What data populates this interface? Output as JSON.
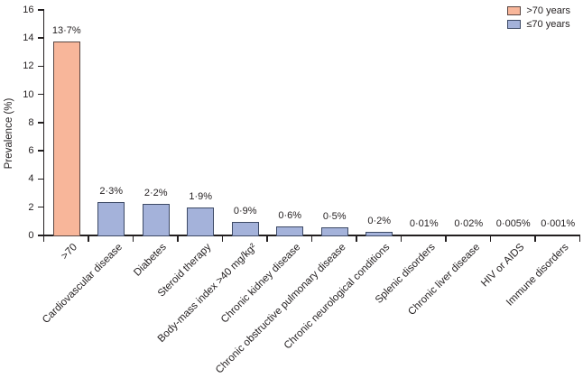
{
  "chart_data": {
    "type": "bar",
    "title": "",
    "xlabel": "",
    "ylabel": "Prevalence (%)",
    "ylim": [
      0,
      16
    ],
    "yticks": [
      0,
      2,
      4,
      6,
      8,
      10,
      12,
      14,
      16
    ],
    "grid": false,
    "legend_position": "top-right",
    "categories": [
      ">70",
      "Cardiovascular disease",
      "Diabetes",
      "Steroid therapy",
      "Body-mass index >40 mg/kg²",
      "Chronic kidney disease",
      "Chronic obstructive pulmonary disease",
      "Chronic neurological conditions",
      "Splenic disorders",
      "Chronic liver disease",
      "HIV or AIDS",
      "Immune disorders"
    ],
    "values": [
      13.7,
      2.3,
      2.2,
      1.9,
      0.9,
      0.6,
      0.5,
      0.2,
      0.01,
      0.02,
      0.005,
      0.001
    ],
    "value_labels": [
      "13·7%",
      "2·3%",
      "2·2%",
      "1·9%",
      "0·9%",
      "0·6%",
      "0·5%",
      "0·2%",
      "0·01%",
      "0·02%",
      "0·005%",
      "0·001%"
    ],
    "series_of_bar": [
      0,
      1,
      1,
      1,
      1,
      1,
      1,
      1,
      1,
      1,
      1,
      1
    ],
    "legend": [
      {
        "label": ">70 years",
        "fill": "#f8b69a",
        "border": "#5a4743"
      },
      {
        "label": "≤70 years",
        "fill": "#a4b2da",
        "border": "#3d4a66"
      }
    ],
    "colors": {
      "axis": "#231f20",
      "text": "#231f20",
      "background": "#ffffff"
    }
  }
}
